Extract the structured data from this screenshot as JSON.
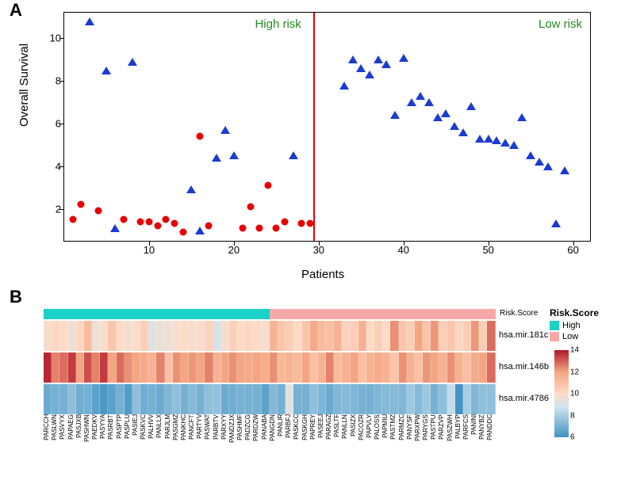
{
  "panelA": {
    "label": "A",
    "ylabel": "Overall Survival",
    "xlabel": "Patients",
    "xlim": [
      0,
      62
    ],
    "ylim": [
      0.5,
      11.2
    ],
    "xticks": [
      10,
      20,
      30,
      40,
      50,
      60
    ],
    "yticks": [
      2,
      4,
      6,
      8,
      10
    ],
    "divider_x": 29.5,
    "high_risk_label": "High risk",
    "low_risk_label": "Low risk",
    "risk_label_color": "#228B22",
    "divider_color": "#e60000",
    "circle_color": "#e60000",
    "triangle_color": "#1b3bd1",
    "points": [
      {
        "x": 1,
        "y": 1.5,
        "shape": "circle"
      },
      {
        "x": 2,
        "y": 2.2,
        "shape": "circle"
      },
      {
        "x": 3,
        "y": 10.8,
        "shape": "triangle"
      },
      {
        "x": 4,
        "y": 1.9,
        "shape": "circle"
      },
      {
        "x": 5,
        "y": 8.5,
        "shape": "triangle"
      },
      {
        "x": 6,
        "y": 1.1,
        "shape": "triangle"
      },
      {
        "x": 7,
        "y": 1.5,
        "shape": "circle"
      },
      {
        "x": 8,
        "y": 8.9,
        "shape": "triangle"
      },
      {
        "x": 9,
        "y": 1.4,
        "shape": "circle"
      },
      {
        "x": 10,
        "y": 1.4,
        "shape": "circle"
      },
      {
        "x": 11,
        "y": 1.2,
        "shape": "circle"
      },
      {
        "x": 12,
        "y": 1.5,
        "shape": "circle"
      },
      {
        "x": 13,
        "y": 1.3,
        "shape": "circle"
      },
      {
        "x": 14,
        "y": 0.9,
        "shape": "circle"
      },
      {
        "x": 15,
        "y": 2.9,
        "shape": "triangle"
      },
      {
        "x": 16,
        "y": 1.0,
        "shape": "triangle"
      },
      {
        "x": 16,
        "y": 5.4,
        "shape": "circle"
      },
      {
        "x": 17,
        "y": 1.2,
        "shape": "circle"
      },
      {
        "x": 18,
        "y": 4.4,
        "shape": "triangle"
      },
      {
        "x": 19,
        "y": 5.7,
        "shape": "triangle"
      },
      {
        "x": 20,
        "y": 4.5,
        "shape": "triangle"
      },
      {
        "x": 21,
        "y": 1.1,
        "shape": "circle"
      },
      {
        "x": 22,
        "y": 2.1,
        "shape": "circle"
      },
      {
        "x": 23,
        "y": 1.1,
        "shape": "circle"
      },
      {
        "x": 24,
        "y": 3.1,
        "shape": "circle"
      },
      {
        "x": 25,
        "y": 1.1,
        "shape": "circle"
      },
      {
        "x": 26,
        "y": 1.4,
        "shape": "circle"
      },
      {
        "x": 27,
        "y": 4.5,
        "shape": "triangle"
      },
      {
        "x": 28,
        "y": 1.3,
        "shape": "circle"
      },
      {
        "x": 29,
        "y": 1.3,
        "shape": "circle"
      },
      {
        "x": 33,
        "y": 7.8,
        "shape": "triangle"
      },
      {
        "x": 34,
        "y": 9.0,
        "shape": "triangle"
      },
      {
        "x": 35,
        "y": 8.6,
        "shape": "triangle"
      },
      {
        "x": 36,
        "y": 8.3,
        "shape": "triangle"
      },
      {
        "x": 37,
        "y": 9.0,
        "shape": "triangle"
      },
      {
        "x": 38,
        "y": 8.8,
        "shape": "triangle"
      },
      {
        "x": 39,
        "y": 6.4,
        "shape": "triangle"
      },
      {
        "x": 40,
        "y": 9.1,
        "shape": "triangle"
      },
      {
        "x": 41,
        "y": 7.0,
        "shape": "triangle"
      },
      {
        "x": 42,
        "y": 7.3,
        "shape": "triangle"
      },
      {
        "x": 43,
        "y": 7.0,
        "shape": "triangle"
      },
      {
        "x": 44,
        "y": 6.3,
        "shape": "triangle"
      },
      {
        "x": 45,
        "y": 6.5,
        "shape": "triangle"
      },
      {
        "x": 46,
        "y": 5.9,
        "shape": "triangle"
      },
      {
        "x": 47,
        "y": 5.6,
        "shape": "triangle"
      },
      {
        "x": 48,
        "y": 6.8,
        "shape": "triangle"
      },
      {
        "x": 49,
        "y": 5.3,
        "shape": "triangle"
      },
      {
        "x": 50,
        "y": 5.3,
        "shape": "triangle"
      },
      {
        "x": 51,
        "y": 5.2,
        "shape": "triangle"
      },
      {
        "x": 52,
        "y": 5.1,
        "shape": "triangle"
      },
      {
        "x": 53,
        "y": 5.0,
        "shape": "triangle"
      },
      {
        "x": 54,
        "y": 6.3,
        "shape": "triangle"
      },
      {
        "x": 55,
        "y": 4.5,
        "shape": "triangle"
      },
      {
        "x": 56,
        "y": 4.2,
        "shape": "triangle"
      },
      {
        "x": 57,
        "y": 4.0,
        "shape": "triangle"
      },
      {
        "x": 58,
        "y": 1.3,
        "shape": "triangle"
      },
      {
        "x": 59,
        "y": 3.8,
        "shape": "triangle"
      }
    ]
  },
  "panelB": {
    "label": "B",
    "annotation_title": "Risk.Score",
    "legend_title": "Risk.Score",
    "legend_items": [
      {
        "label": "High",
        "color": "#1bd1c8"
      },
      {
        "label": "Low",
        "color": "#f7a8a8"
      }
    ],
    "colorbar": {
      "min": 6,
      "max": 14,
      "ticks": [
        6,
        8,
        10,
        12,
        14
      ],
      "stops": [
        {
          "p": 0,
          "c": "#4393c3"
        },
        {
          "p": 0.35,
          "c": "#d1e5f0"
        },
        {
          "p": 0.5,
          "c": "#fddbc7"
        },
        {
          "p": 0.75,
          "c": "#f4a582"
        },
        {
          "p": 1,
          "c": "#b2182b"
        }
      ]
    },
    "patients": [
      "PARCCH",
      "PASLWN",
      "PASVYX",
      "PAPAEG",
      "PASJXB",
      "PASHWN",
      "PAEDKV",
      "PASYYA",
      "PASRBT",
      "PASPTP",
      "PASPLU",
      "PASIEJ",
      "PASKVC",
      "PALHVV",
      "PANLLX",
      "PARJLM",
      "PASGMZ",
      "PANKHC",
      "PANCFT",
      "PARTYV",
      "PASWAT",
      "PARBTV",
      "PARXYY",
      "PANDZJX",
      "PASHMF",
      "PADZCG",
      "PARDZW",
      "PANABA",
      "PANGDN",
      "PANLIR",
      "PARBFJ",
      "PASKCC",
      "PASKGH",
      "PAPREY",
      "PASEEJ",
      "PARAGZ",
      "PASLTF",
      "PANLLN",
      "PASIZX",
      "PACOZR",
      "PAPVLY",
      "PALOSS",
      "PAPMIU",
      "PASTMZ",
      "PARMZC",
      "PANYSF",
      "PARXPW",
      "PARYGS",
      "PASTPU",
      "PARZVP",
      "PASZWH",
      "PALBYP",
      "PARFCS",
      "PANINI",
      "PANYBZ",
      "PANDDC"
    ],
    "risk_group": [
      0,
      0,
      0,
      0,
      0,
      0,
      0,
      0,
      0,
      0,
      0,
      0,
      0,
      0,
      0,
      0,
      0,
      0,
      0,
      0,
      0,
      0,
      0,
      0,
      0,
      0,
      0,
      0,
      1,
      1,
      1,
      1,
      1,
      1,
      1,
      1,
      1,
      1,
      1,
      1,
      1,
      1,
      1,
      1,
      1,
      1,
      1,
      1,
      1,
      1,
      1,
      1,
      1,
      1,
      1,
      1
    ],
    "rows": [
      {
        "label": "hsa.mir.181c",
        "values": [
          9.8,
          10.2,
          10.0,
          9.5,
          10.2,
          11.2,
          9.5,
          9.8,
          10.8,
          10.0,
          9.7,
          9.9,
          10.5,
          9.2,
          9.5,
          9.5,
          9.9,
          10.0,
          9.8,
          9.8,
          10.3,
          9.0,
          9.8,
          10.4,
          10.0,
          10.2,
          10.0,
          9.8,
          11.5,
          10.8,
          10.5,
          10.0,
          10.8,
          11.8,
          11.2,
          11.0,
          11.5,
          10.3,
          10.5,
          11.6,
          10.0,
          10.5,
          10.0,
          12.3,
          10.8,
          10.5,
          12.0,
          10.8,
          12.2,
          10.5,
          10.8,
          10.2,
          10.5,
          12.2,
          10.5,
          12.8
        ]
      },
      {
        "label": "hsa.mir.146b",
        "values": [
          13.8,
          12.5,
          12.8,
          13.5,
          12.0,
          13.2,
          12.5,
          13.5,
          12.0,
          12.8,
          12.3,
          12.0,
          11.8,
          11.5,
          12.5,
          11.0,
          12.3,
          12.0,
          12.2,
          12.0,
          12.5,
          11.5,
          12.0,
          12.3,
          12.0,
          11.8,
          12.0,
          11.7,
          12.3,
          11.3,
          11.5,
          11.2,
          12.0,
          11.0,
          11.5,
          12.5,
          11.2,
          11.5,
          12.0,
          11.0,
          11.5,
          11.8,
          11.5,
          10.8,
          12.3,
          11.5,
          11.0,
          12.2,
          12.0,
          11.5,
          12.3,
          11.5,
          11.0,
          11.8,
          12.0,
          12.8
        ]
      },
      {
        "label": "hsa.mir.4786",
        "values": [
          6.8,
          7.0,
          7.0,
          7.5,
          6.9,
          7.0,
          6.5,
          6.2,
          6.5,
          7.0,
          6.3,
          7.5,
          6.9,
          7.0,
          6.8,
          7.2,
          7.5,
          7.0,
          7.3,
          7.0,
          7.5,
          7.6,
          6.8,
          6.9,
          7.0,
          7.0,
          7.0,
          6.5,
          7.3,
          7.0,
          9.2,
          7.0,
          7.0,
          7.5,
          7.2,
          6.8,
          7.2,
          7.3,
          7.2,
          7.0,
          7.0,
          7.2,
          7.3,
          7.3,
          7.2,
          7.8,
          7.3,
          7.8,
          7.0,
          7.5,
          8.5,
          6.0,
          8.0,
          7.2,
          7.5,
          7.5
        ]
      }
    ]
  }
}
